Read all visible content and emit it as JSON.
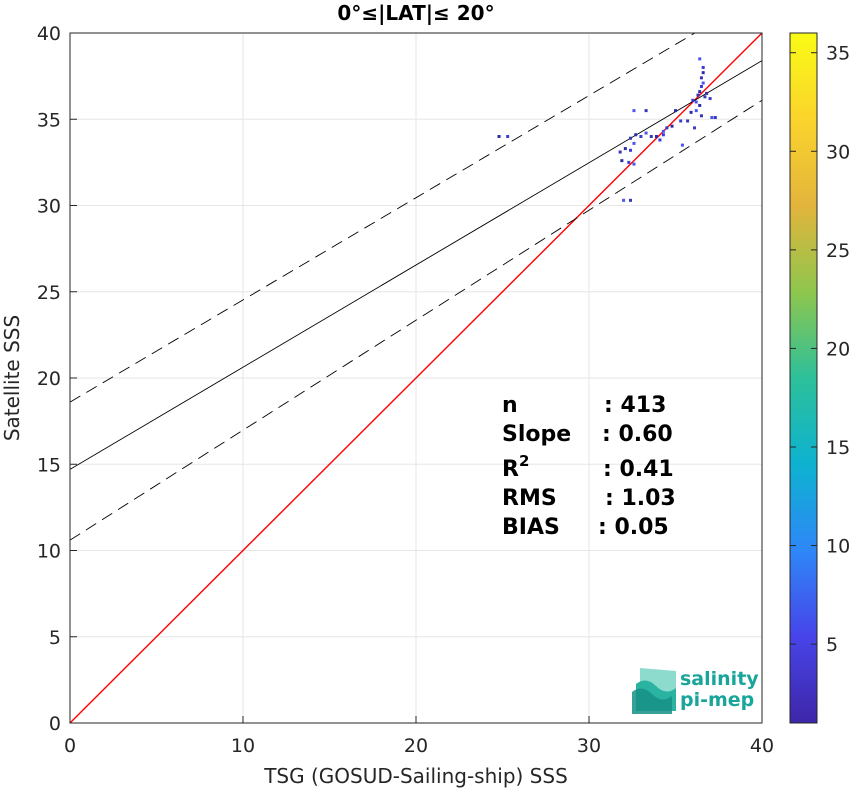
{
  "chart_data": {
    "type": "scatter",
    "title": "0°≤|LAT|≤ 20°",
    "xlabel": "TSG (GOSUD-Sailing-ship) SSS",
    "ylabel": "Satellite SSS",
    "xlim": [
      0,
      40
    ],
    "ylim": [
      0,
      40
    ],
    "xticks": [
      "0",
      "10",
      "20",
      "30",
      "40"
    ],
    "yticks": [
      "0",
      "5",
      "10",
      "15",
      "20",
      "25",
      "30",
      "35",
      "40"
    ],
    "grid": true,
    "lines": [
      {
        "name": "1:1",
        "style": "solid",
        "color": "#ff0000",
        "x": [
          0,
          40
        ],
        "y": [
          0,
          40
        ]
      },
      {
        "name": "fit",
        "style": "solid",
        "color": "#000000",
        "x": [
          0,
          40
        ],
        "y": [
          14.7,
          38.4
        ]
      },
      {
        "name": "fit+",
        "style": "dashed",
        "color": "#000000",
        "x": [
          0,
          40
        ],
        "y": [
          18.6,
          42.3
        ]
      },
      {
        "name": "fit-",
        "style": "dashed",
        "color": "#000000",
        "x": [
          0,
          40
        ],
        "y": [
          10.6,
          36.1
        ]
      }
    ],
    "points": [
      [
        24.8,
        34.0
      ],
      [
        25.3,
        34.0
      ],
      [
        32.0,
        30.3
      ],
      [
        32.4,
        30.3
      ],
      [
        31.9,
        32.6
      ],
      [
        32.3,
        32.5
      ],
      [
        32.6,
        32.4
      ],
      [
        31.8,
        33.1
      ],
      [
        32.1,
        33.3
      ],
      [
        32.4,
        33.2
      ],
      [
        32.6,
        33.6
      ],
      [
        32.4,
        33.9
      ],
      [
        32.7,
        34.1
      ],
      [
        33.0,
        34.0
      ],
      [
        33.3,
        34.2
      ],
      [
        33.6,
        34.0
      ],
      [
        33.9,
        34.0
      ],
      [
        34.1,
        33.8
      ],
      [
        34.3,
        34.3
      ],
      [
        34.5,
        34.5
      ],
      [
        34.8,
        34.6
      ],
      [
        34.3,
        34.1
      ],
      [
        32.6,
        35.5
      ],
      [
        33.3,
        35.5
      ],
      [
        35.0,
        35.5
      ],
      [
        35.3,
        34.9
      ],
      [
        35.4,
        33.5
      ],
      [
        35.7,
        34.9
      ],
      [
        35.9,
        35.4
      ],
      [
        36.1,
        34.5
      ],
      [
        36.2,
        35.5
      ],
      [
        36.5,
        35.2
      ],
      [
        36.4,
        35.8
      ],
      [
        36.0,
        36.1
      ],
      [
        36.2,
        36.0
      ],
      [
        36.3,
        36.4
      ],
      [
        36.4,
        36.6
      ],
      [
        36.5,
        36.9
      ],
      [
        36.6,
        37.1
      ],
      [
        36.5,
        37.4
      ],
      [
        36.6,
        37.7
      ],
      [
        36.6,
        38.0
      ],
      [
        36.4,
        38.5
      ],
      [
        36.7,
        36.3
      ],
      [
        36.8,
        36.5
      ],
      [
        37.0,
        36.2
      ],
      [
        37.1,
        35.1
      ],
      [
        37.3,
        35.1
      ]
    ],
    "colorbar": {
      "ticks": [
        "5",
        "10",
        "15",
        "20",
        "25",
        "30",
        "35"
      ],
      "min": 1,
      "max": 36,
      "colors": [
        "#3e26a8",
        "#4744e9",
        "#2e87f7",
        "#0db2d0",
        "#2dc09a",
        "#8fc64d",
        "#e3b43c",
        "#fbd42c",
        "#f9fb15"
      ]
    },
    "annotations": [
      {
        "label": "n",
        "value": ": 413"
      },
      {
        "label": "Slope",
        "value": ": 0.60"
      },
      {
        "label": "R",
        "sup": "2",
        "value": ": 0.41"
      },
      {
        "label": "RMS",
        "value": ": 1.03"
      },
      {
        "label": "BIAS",
        "value": ": 0.05"
      }
    ]
  },
  "logo": {
    "line1": "salinity",
    "line2": "pi-mep"
  }
}
